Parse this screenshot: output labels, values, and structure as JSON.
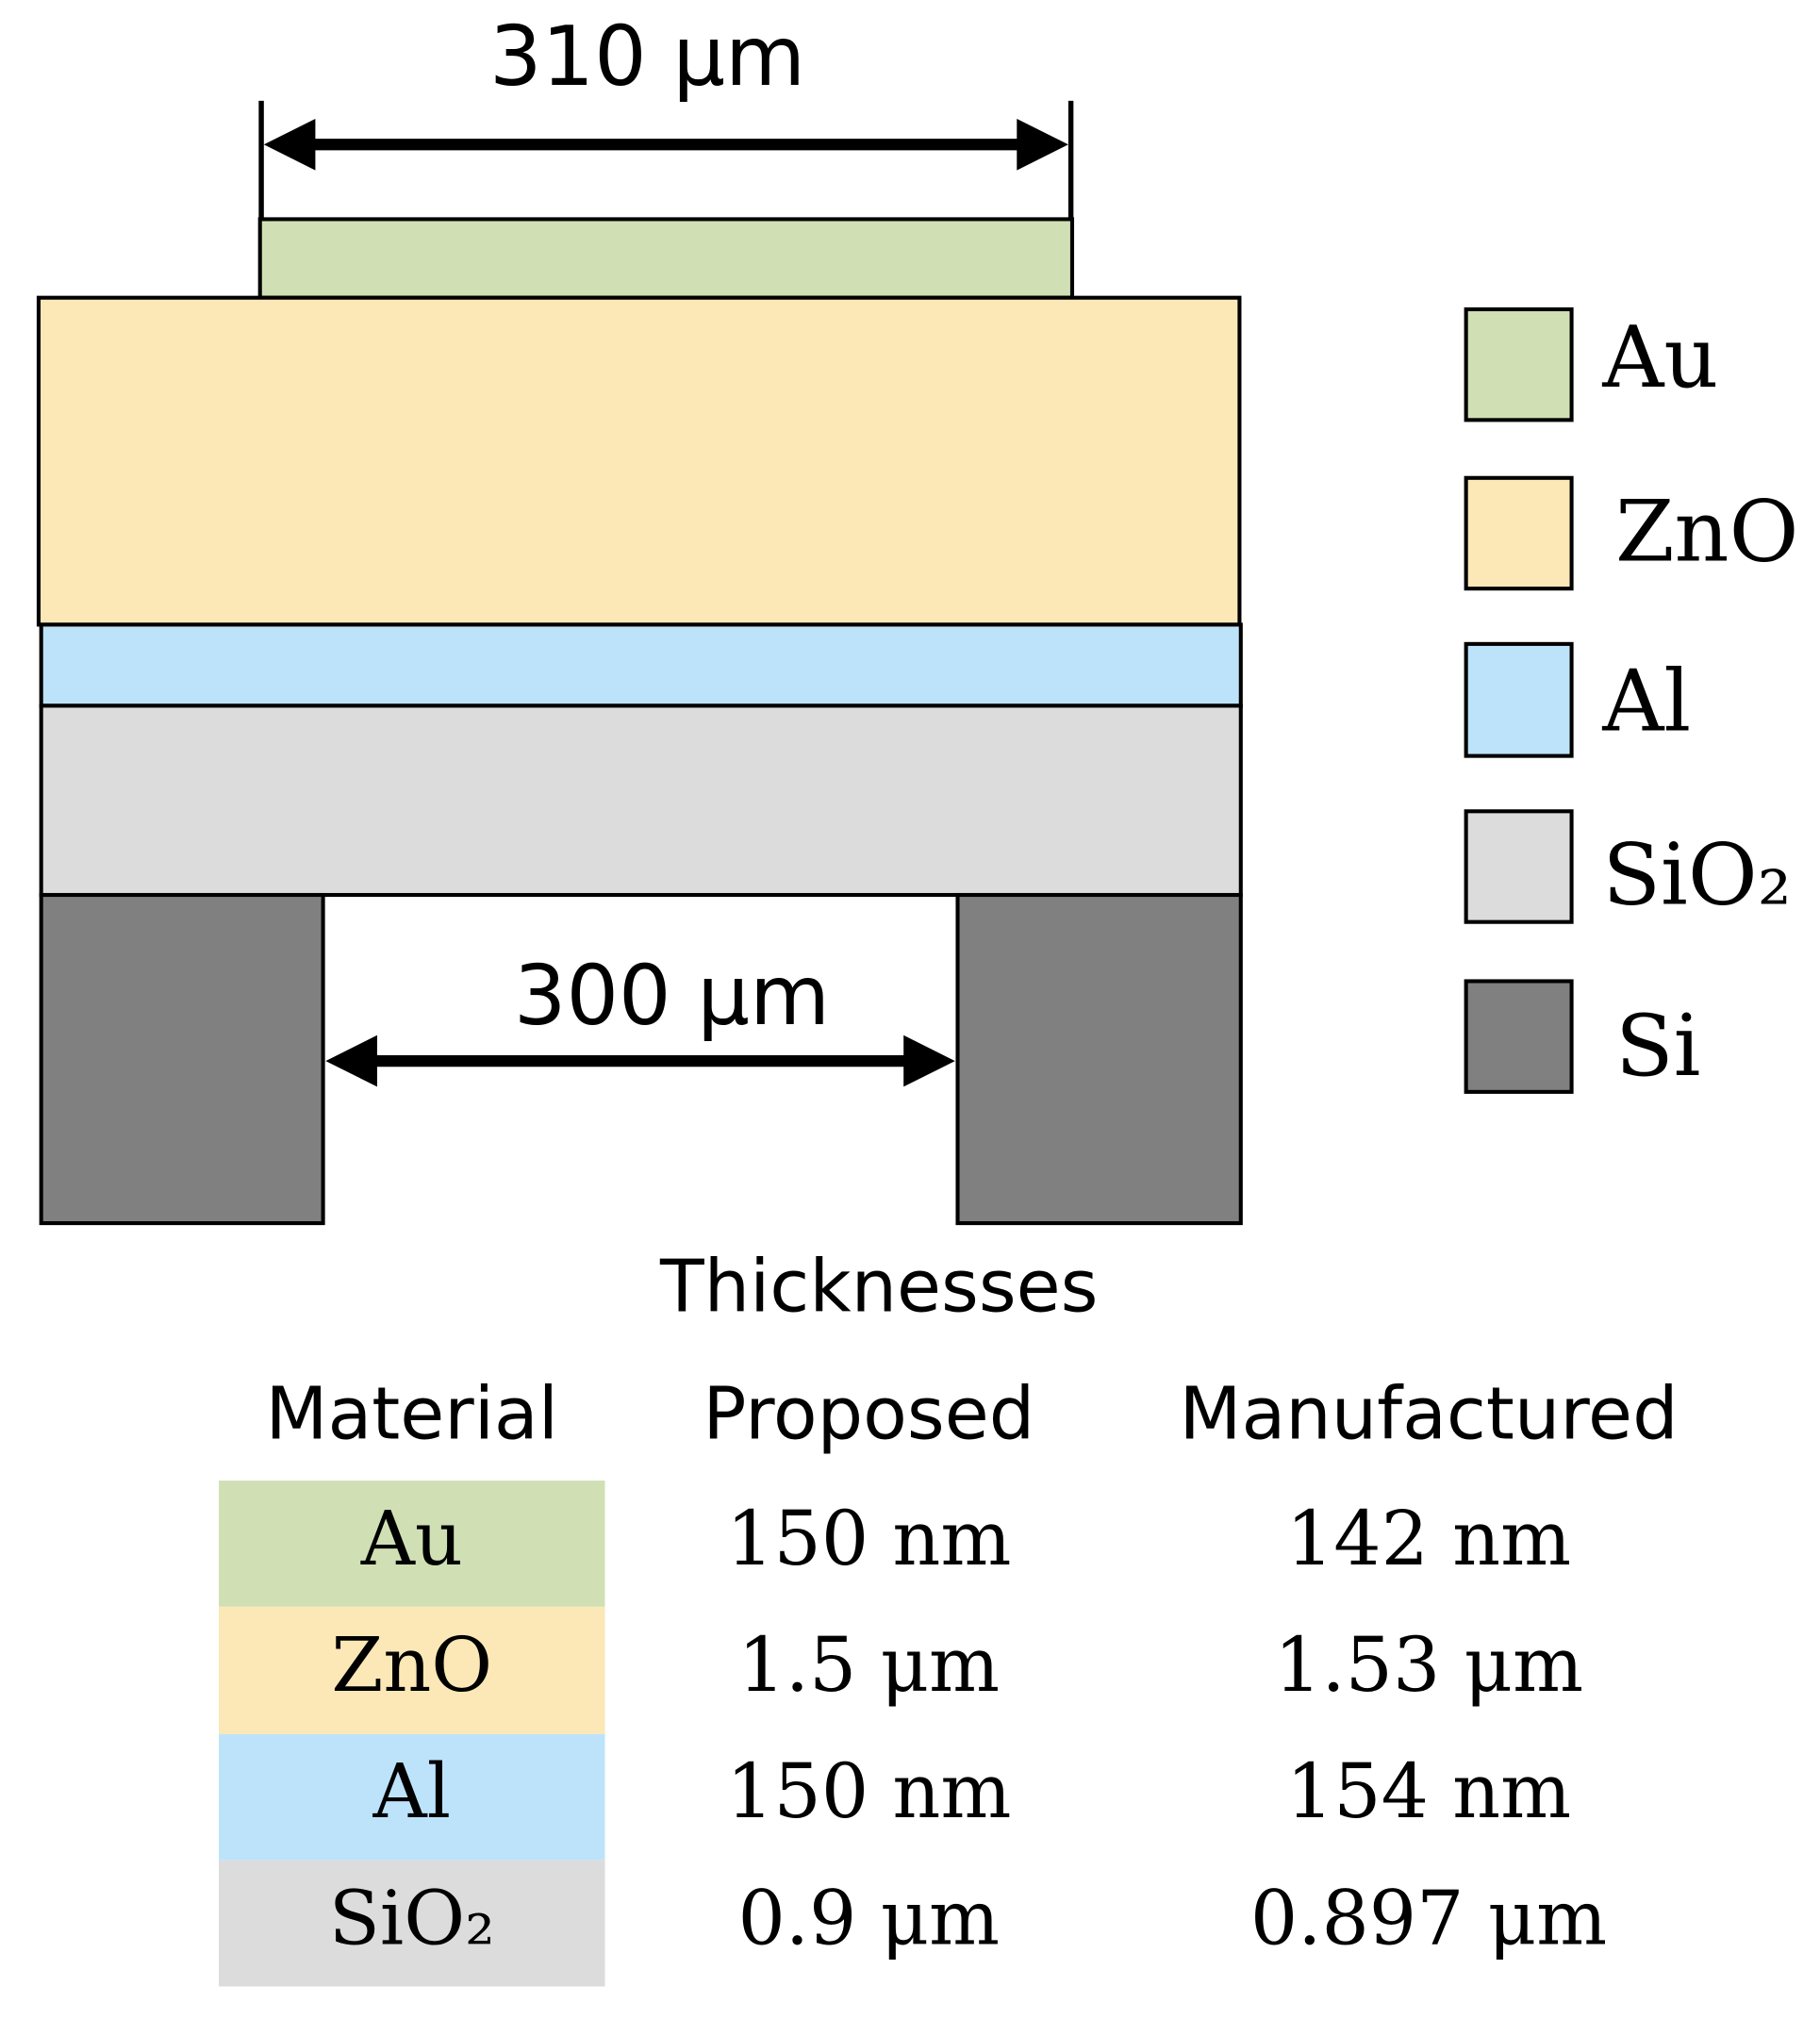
{
  "diagram": {
    "dimensions": {
      "top": "310 μm",
      "bottom": "300 μm"
    },
    "legend": [
      "Au",
      "ZnO",
      "Al",
      "SiO₂",
      "Si"
    ]
  },
  "table": {
    "title": "Thicknesses",
    "header": [
      "Material",
      "Proposed",
      "Manufactured"
    ],
    "rows": [
      [
        "Au",
        "150 nm",
        "142 nm"
      ],
      [
        "ZnO",
        "1.5 μm",
        "1.53 μm"
      ],
      [
        "Al",
        "150 nm",
        "154 nm"
      ],
      [
        "SiO₂",
        "0.9 μm",
        "0.897 μm"
      ]
    ]
  }
}
